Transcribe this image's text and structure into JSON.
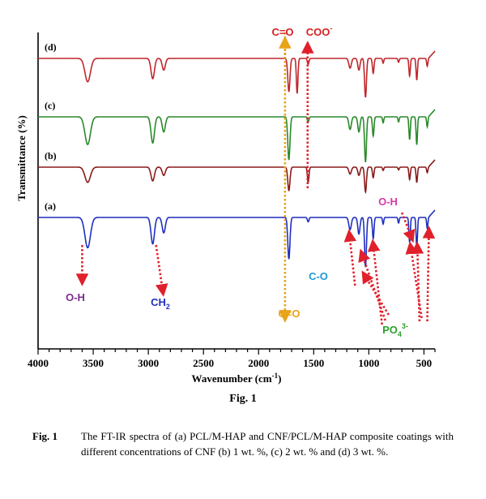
{
  "chart_data": {
    "type": "line",
    "xlabel": "Wavenumber (cm",
    "xlabel_sup": "-1",
    "xlabel_close": ")",
    "ylabel": "Transmittance (%)",
    "xlim": [
      4000,
      400
    ],
    "x_reversed": true,
    "xticks": [
      4000,
      3500,
      3000,
      2500,
      2000,
      1500,
      1000,
      500
    ],
    "series": [
      {
        "name": "(a)",
        "color": "#1f2fbf",
        "baseline": 0,
        "peaks": [
          [
            3550,
            0.55,
            35
          ],
          [
            2960,
            0.48,
            22
          ],
          [
            2860,
            0.28,
            20
          ],
          [
            1725,
            0.75,
            14
          ],
          [
            1550,
            0.08,
            10
          ],
          [
            1170,
            0.22,
            16
          ],
          [
            1090,
            0.3,
            14
          ],
          [
            1030,
            0.9,
            12
          ],
          [
            960,
            0.38,
            10
          ],
          [
            870,
            0.12,
            8
          ],
          [
            730,
            0.1,
            8
          ],
          [
            630,
            0.45,
            9
          ],
          [
            565,
            0.55,
            9
          ],
          [
            470,
            0.2,
            8
          ]
        ]
      },
      {
        "name": "(b)",
        "color": "#8b1a1a",
        "baseline": 0,
        "peaks": [
          [
            3550,
            0.55,
            35
          ],
          [
            2960,
            0.5,
            22
          ],
          [
            2860,
            0.3,
            20
          ],
          [
            1725,
            0.85,
            14
          ],
          [
            1550,
            0.55,
            10
          ],
          [
            1170,
            0.25,
            16
          ],
          [
            1090,
            0.3,
            14
          ],
          [
            1030,
            0.9,
            12
          ],
          [
            960,
            0.38,
            10
          ],
          [
            870,
            0.12,
            8
          ],
          [
            730,
            0.1,
            8
          ],
          [
            630,
            0.45,
            9
          ],
          [
            565,
            0.55,
            9
          ],
          [
            470,
            0.2,
            8
          ]
        ]
      },
      {
        "name": "(c)",
        "color": "#2a8a2a",
        "baseline": 0,
        "peaks": [
          [
            3550,
            0.55,
            35
          ],
          [
            2960,
            0.52,
            22
          ],
          [
            2860,
            0.3,
            20
          ],
          [
            1725,
            0.85,
            14
          ],
          [
            1550,
            0.1,
            10
          ],
          [
            1170,
            0.25,
            16
          ],
          [
            1090,
            0.3,
            14
          ],
          [
            1030,
            0.9,
            12
          ],
          [
            960,
            0.38,
            10
          ],
          [
            870,
            0.12,
            8
          ],
          [
            730,
            0.1,
            8
          ],
          [
            630,
            0.45,
            9
          ],
          [
            565,
            0.55,
            9
          ],
          [
            470,
            0.2,
            8
          ]
        ]
      },
      {
        "name": "(d)",
        "color": "#c0262c",
        "baseline": 0,
        "peaks": [
          [
            3550,
            0.6,
            35
          ],
          [
            2960,
            0.52,
            22
          ],
          [
            2860,
            0.3,
            20
          ],
          [
            1725,
            0.85,
            14
          ],
          [
            1650,
            0.9,
            10
          ],
          [
            1550,
            0.15,
            10
          ],
          [
            1170,
            0.25,
            16
          ],
          [
            1090,
            0.3,
            14
          ],
          [
            1030,
            1.0,
            12
          ],
          [
            960,
            0.38,
            10
          ],
          [
            870,
            0.12,
            8
          ],
          [
            730,
            0.1,
            8
          ],
          [
            630,
            0.45,
            9
          ],
          [
            565,
            0.55,
            9
          ],
          [
            470,
            0.2,
            8
          ]
        ]
      }
    ],
    "annotations": [
      {
        "text": "O-H",
        "color": "#7b2d8e",
        "arrow_x": 3600
      },
      {
        "text": "CH",
        "sub": "2",
        "color": "#1f2fbf",
        "arrow_x": 2870
      },
      {
        "text": "C=O",
        "color": "#e8a317",
        "arrow_x": 1760
      },
      {
        "text": "C-O",
        "color": "#1f9ad6",
        "arrow_x": 1170
      },
      {
        "text": "PO",
        "sub": "4",
        "sup": "3-",
        "color": "#2ca02c"
      },
      {
        "text": "O-H",
        "color": "#d63aa8",
        "arrow_x": 640
      },
      {
        "text": "C=O",
        "color": "#d62020",
        "arrow_x": 1760
      },
      {
        "text": "COO",
        "sup": "-",
        "color": "#d62020",
        "arrow_x": 1555
      }
    ],
    "arrow_color": "#e0212c"
  },
  "figure": {
    "label": "Fig. 1",
    "caption_num": "Fig. 1",
    "caption_text": "The FT-IR spectra of (a) PCL/M-HAP and CNF/PCL/M-HAP composite coatings with  different concentrations of CNF (b) 1 wt. %, (c) 2 wt. % and (d) 3 wt. %."
  }
}
